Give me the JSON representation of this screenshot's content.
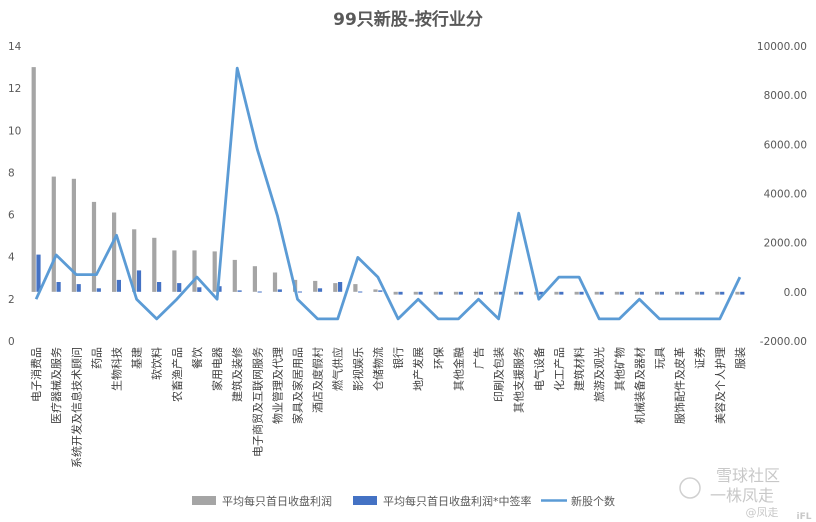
{
  "chart_data": {
    "type": "bar",
    "title": "99只新股-按行业分",
    "categories": [
      "电子消费品",
      "医疗器械及服务",
      "系统开发及信息技术顾问",
      "药品",
      "生物科技",
      "基建",
      "软饮料",
      "农畜渔产品",
      "餐饮",
      "家用电器",
      "建筑及装修",
      "电子商贸及互联网服务",
      "物业管理及代理",
      "家具及家居用品",
      "酒店及度假村",
      "燃气供应",
      "影视娱乐",
      "仓储物流",
      "银行",
      "地产发展",
      "环保",
      "其他金融",
      "广告",
      "印刷及包装",
      "其他支援服务",
      "电气设备",
      "化工产品",
      "建筑材料",
      "旅游及观光",
      "其他矿物",
      "机械装备及器材",
      "玩具",
      "服饰配件及皮革",
      "证券",
      "美容及个人护理",
      "服装"
    ],
    "series": [
      {
        "name": "平均每只首日收盘利润",
        "axis": "left",
        "color": "#a5a5a5",
        "values": [
          13.0,
          7.8,
          7.7,
          6.6,
          6.1,
          5.3,
          4.9,
          4.3,
          4.3,
          4.25,
          3.85,
          3.55,
          3.25,
          2.9,
          2.85,
          2.75,
          2.7,
          2.45,
          2.2,
          2.2,
          2.2,
          2.2,
          2.2,
          2.2,
          2.2,
          2.2,
          2.2,
          2.2,
          2.2,
          2.2,
          2.2,
          2.2,
          2.2,
          2.2,
          2.2,
          2.2
        ]
      },
      {
        "name": "平均每只首日收盘利润*中签率",
        "axis": "left",
        "color": "#4472c4",
        "values": [
          4.1,
          2.8,
          2.7,
          2.5,
          2.9,
          3.35,
          2.8,
          2.75,
          2.55,
          2.6,
          2.4,
          2.35,
          2.45,
          2.35,
          2.5,
          2.8,
          2.35,
          2.4,
          2.2,
          2.2,
          2.2,
          2.2,
          2.2,
          2.2,
          2.2,
          2.2,
          2.2,
          2.2,
          2.2,
          2.2,
          2.2,
          2.2,
          2.2,
          2.2,
          2.2,
          2.2
        ]
      },
      {
        "name": "新股个数",
        "axis": "right",
        "type": "line",
        "color": "#5b9bd5",
        "values": [
          -300,
          1500,
          700,
          700,
          2300,
          -300,
          -1100,
          -300,
          600,
          -300,
          9100,
          5800,
          3100,
          -300,
          -1100,
          -1100,
          1400,
          600,
          -1100,
          -300,
          -1100,
          -1100,
          -300,
          -1100,
          3200,
          -300,
          600,
          600,
          -1100,
          -1100,
          -300,
          -1100,
          -1100,
          -1100,
          -1100,
          600
        ]
      }
    ],
    "ylim_left": [
      0,
      14
    ],
    "yticks_left": [
      "0",
      "2",
      "4",
      "6",
      "8",
      "10",
      "12",
      "14"
    ],
    "ylim_right": [
      -2000,
      10000
    ],
    "yticks_right": [
      "-2000.00",
      "0.00",
      "2000.00",
      "4000.00",
      "6000.00",
      "8000.00",
      "10000.00"
    ],
    "legend_position": "bottom",
    "grid": false
  },
  "watermark": {
    "main": "一株凤走",
    "sub": "@凤走",
    "site": "雪球社区",
    "badge": "iFL"
  }
}
